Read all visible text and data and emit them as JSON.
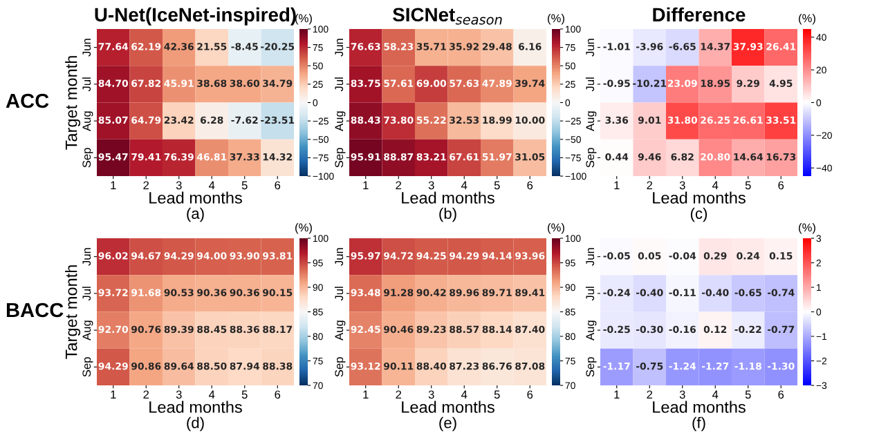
{
  "chart_data": [
    {
      "type": "heatmap",
      "title": "U-Net(IceNet-inspired)",
      "xlabel": "Lead months",
      "ylabel": "Target month",
      "clabel": "(%)",
      "annotations": [
        "(a)",
        "ACC"
      ],
      "categories": [
        "1",
        "2",
        "3",
        "4",
        "5",
        "6"
      ],
      "y_categories": [
        "Jun",
        "Jul",
        "Aug",
        "Sep"
      ],
      "cells": [
        [
          77.64,
          62.19,
          42.36,
          21.55,
          -8.45,
          -20.25
        ],
        [
          84.7,
          67.82,
          45.91,
          38.68,
          38.6,
          34.79
        ],
        [
          85.07,
          64.79,
          23.42,
          6.28,
          -7.62,
          -23.51
        ],
        [
          95.47,
          79.41,
          76.39,
          46.81,
          37.33,
          14.32
        ]
      ],
      "cell_labels": [
        [
          "77.64",
          "62.19",
          "42.36",
          "21.55",
          "-8.45",
          "-20.25"
        ],
        [
          "84.70",
          "67.82",
          "45.91",
          "38.68",
          "38.60",
          "34.79"
        ],
        [
          "85.07",
          "64.79",
          "23.42",
          "6.28",
          "-7.62",
          "-23.51"
        ],
        [
          "95.47",
          "79.41",
          "76.39",
          "46.81",
          "37.33",
          "14.32"
        ]
      ],
      "clim": [
        -100,
        100
      ],
      "cticks": [
        -100,
        -75,
        -50,
        -25,
        0,
        25,
        50,
        75,
        100
      ],
      "colors": [
        "#053061",
        "#2166ac",
        "#4393c3",
        "#92c5de",
        "#d1e5f0",
        "#f7f7f7",
        "#fddbc7",
        "#f4a582",
        "#d6604d",
        "#b2182b",
        "#67001f"
      ]
    },
    {
      "type": "heatmap",
      "title": "SICNet$_{season}$",
      "xlabel": "Lead months",
      "clabel": "(%)",
      "annotations": [
        "(b)"
      ],
      "categories": [
        "1",
        "2",
        "3",
        "4",
        "5",
        "6"
      ],
      "y_categories": [
        "Jun",
        "Jul",
        "Aug",
        "Sep"
      ],
      "cells": [
        [
          76.63,
          58.23,
          35.71,
          35.92,
          29.48,
          6.16
        ],
        [
          83.75,
          57.61,
          69.0,
          57.63,
          47.89,
          39.74
        ],
        [
          88.43,
          73.8,
          55.22,
          32.53,
          18.99,
          10.0
        ],
        [
          95.91,
          88.87,
          83.21,
          67.61,
          51.97,
          31.05
        ]
      ],
      "cell_labels": [
        [
          "76.63",
          "58.23",
          "35.71",
          "35.92",
          "29.48",
          "6.16"
        ],
        [
          "83.75",
          "57.61",
          "69.00",
          "57.63",
          "47.89",
          "39.74"
        ],
        [
          "88.43",
          "73.80",
          "55.22",
          "32.53",
          "18.99",
          "10.00"
        ],
        [
          "95.91",
          "88.87",
          "83.21",
          "67.61",
          "51.97",
          "31.05"
        ]
      ],
      "clim": [
        -100,
        100
      ],
      "cticks": [
        -100,
        -75,
        -50,
        -25,
        0,
        25,
        50,
        75,
        100
      ],
      "colors": [
        "#053061",
        "#2166ac",
        "#4393c3",
        "#92c5de",
        "#d1e5f0",
        "#f7f7f7",
        "#fddbc7",
        "#f4a582",
        "#d6604d",
        "#b2182b",
        "#67001f"
      ]
    },
    {
      "type": "heatmap",
      "title": "Difference",
      "xlabel": "Lead months",
      "clabel": "(%)",
      "annotations": [
        "(c)"
      ],
      "categories": [
        "1",
        "2",
        "3",
        "4",
        "5",
        "6"
      ],
      "y_categories": [
        "Jun",
        "Jul",
        "Aug",
        "Sep"
      ],
      "cells": [
        [
          -1.01,
          -3.96,
          -6.65,
          14.37,
          37.93,
          26.41
        ],
        [
          -0.95,
          -10.21,
          23.09,
          18.95,
          9.29,
          4.95
        ],
        [
          3.36,
          9.01,
          31.8,
          26.25,
          26.61,
          33.51
        ],
        [
          0.44,
          9.46,
          6.82,
          20.8,
          14.64,
          16.73
        ]
      ],
      "cell_labels": [
        [
          "-1.01",
          "-3.96",
          "-6.65",
          "14.37",
          "37.93",
          "26.41"
        ],
        [
          "-0.95",
          "-10.21",
          "23.09",
          "18.95",
          "9.29",
          "4.95"
        ],
        [
          "3.36",
          "9.01",
          "31.80",
          "26.25",
          "26.61",
          "33.51"
        ],
        [
          "0.44",
          "9.46",
          "6.82",
          "20.80",
          "14.64",
          "16.73"
        ]
      ],
      "clim": [
        -45,
        45
      ],
      "cticks": [
        -40,
        -20,
        0,
        20,
        40
      ],
      "colors": [
        "#0000ff",
        "#ffffff",
        "#ff0000"
      ]
    },
    {
      "type": "heatmap",
      "xlabel": "Lead months",
      "ylabel": "Target month",
      "clabel": "(%)",
      "annotations": [
        "(d)",
        "BACC"
      ],
      "categories": [
        "1",
        "2",
        "3",
        "4",
        "5",
        "6"
      ],
      "y_categories": [
        "Jun",
        "Jul",
        "Aug",
        "Sep"
      ],
      "cells": [
        [
          96.02,
          94.67,
          94.29,
          94.0,
          93.9,
          93.81
        ],
        [
          93.72,
          91.68,
          90.53,
          90.36,
          90.36,
          90.15
        ],
        [
          92.7,
          90.76,
          89.39,
          88.45,
          88.36,
          88.17
        ],
        [
          94.29,
          90.86,
          89.64,
          88.5,
          87.94,
          88.38
        ]
      ],
      "cell_labels": [
        [
          "96.02",
          "94.67",
          "94.29",
          "94.00",
          "93.90",
          "93.81"
        ],
        [
          "93.72",
          "91.68",
          "90.53",
          "90.36",
          "90.36",
          "90.15"
        ],
        [
          "92.70",
          "90.76",
          "89.39",
          "88.45",
          "88.36",
          "88.17"
        ],
        [
          "94.29",
          "90.86",
          "89.64",
          "88.50",
          "87.94",
          "88.38"
        ]
      ],
      "clim": [
        70,
        100
      ],
      "cticks": [
        70,
        75,
        80,
        85,
        90,
        95,
        100
      ],
      "colors": [
        "#053061",
        "#2166ac",
        "#4393c3",
        "#92c5de",
        "#d1e5f0",
        "#f7f7f7",
        "#fddbc7",
        "#f4a582",
        "#d6604d",
        "#b2182b",
        "#67001f"
      ]
    },
    {
      "type": "heatmap",
      "xlabel": "Lead months",
      "clabel": "(%)",
      "annotations": [
        "(e)"
      ],
      "categories": [
        "1",
        "2",
        "3",
        "4",
        "5",
        "6"
      ],
      "y_categories": [
        "Jun",
        "Jul",
        "Aug",
        "Sep"
      ],
      "cells": [
        [
          95.97,
          94.72,
          94.25,
          94.29,
          94.14,
          93.96
        ],
        [
          93.48,
          91.28,
          90.42,
          89.96,
          89.71,
          89.41
        ],
        [
          92.45,
          90.46,
          89.23,
          88.57,
          88.14,
          87.4
        ],
        [
          93.12,
          90.11,
          88.4,
          87.23,
          86.76,
          87.08
        ]
      ],
      "cell_labels": [
        [
          "95.97",
          "94.72",
          "94.25",
          "94.29",
          "94.14",
          "93.96"
        ],
        [
          "93.48",
          "91.28",
          "90.42",
          "89.96",
          "89.71",
          "89.41"
        ],
        [
          "92.45",
          "90.46",
          "89.23",
          "88.57",
          "88.14",
          "87.40"
        ],
        [
          "93.12",
          "90.11",
          "88.40",
          "87.23",
          "86.76",
          "87.08"
        ]
      ],
      "clim": [
        70,
        100
      ],
      "cticks": [
        70,
        75,
        80,
        85,
        90,
        95,
        100
      ],
      "colors": [
        "#053061",
        "#2166ac",
        "#4393c3",
        "#92c5de",
        "#d1e5f0",
        "#f7f7f7",
        "#fddbc7",
        "#f4a582",
        "#d6604d",
        "#b2182b",
        "#67001f"
      ]
    },
    {
      "type": "heatmap",
      "xlabel": "Lead months",
      "clabel": "(%)",
      "annotations": [
        "(f)"
      ],
      "categories": [
        "1",
        "2",
        "3",
        "4",
        "5",
        "6"
      ],
      "y_categories": [
        "Jun",
        "Jul",
        "Aug",
        "Sep"
      ],
      "cells": [
        [
          -0.05,
          0.05,
          -0.04,
          0.29,
          0.24,
          0.15
        ],
        [
          -0.24,
          -0.4,
          -0.11,
          -0.4,
          -0.65,
          -0.74
        ],
        [
          -0.25,
          -0.3,
          -0.16,
          0.12,
          -0.22,
          -0.77
        ],
        [
          -1.17,
          -0.75,
          -1.24,
          -1.27,
          -1.18,
          -1.3
        ]
      ],
      "cell_labels": [
        [
          "-0.05",
          "0.05",
          "-0.04",
          "0.29",
          "0.24",
          "0.15"
        ],
        [
          "-0.24",
          "-0.40",
          "-0.11",
          "-0.40",
          "-0.65",
          "-0.74"
        ],
        [
          "-0.25",
          "-0.30",
          "-0.16",
          "0.12",
          "-0.22",
          "-0.77"
        ],
        [
          "-1.17",
          "-0.75",
          "-1.24",
          "-1.27",
          "-1.18",
          "-1.30"
        ]
      ],
      "clim": [
        -3,
        3
      ],
      "cticks": [
        -3,
        -2,
        -1,
        0,
        1,
        2,
        3
      ],
      "colors": [
        "#0000ff",
        "#ffffff",
        "#ff0000"
      ]
    }
  ]
}
